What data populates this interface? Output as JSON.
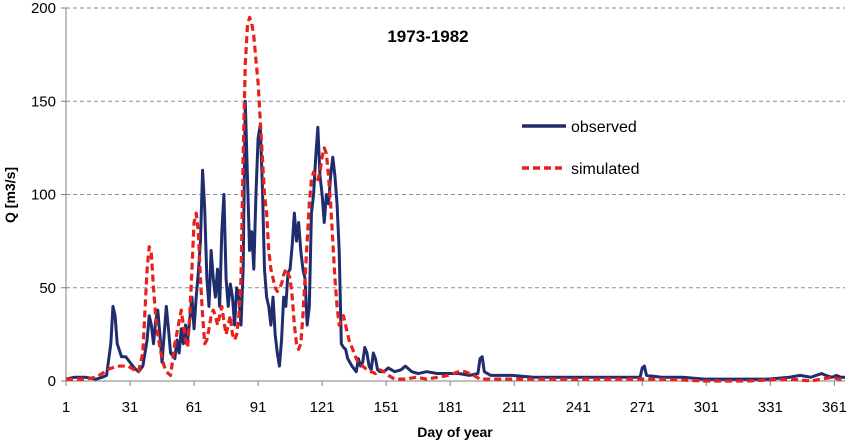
{
  "chart_data": {
    "type": "line",
    "title": "1973-1982",
    "xlabel": "Day of year",
    "ylabel": "Q [m3/s]",
    "xlim": [
      1,
      366
    ],
    "ylim": [
      0,
      200
    ],
    "xticks": [
      1,
      31,
      61,
      91,
      121,
      151,
      181,
      211,
      241,
      271,
      301,
      331,
      361
    ],
    "yticks": [
      0,
      50,
      100,
      150,
      200
    ],
    "grid": "horizontal dashed",
    "legend_position": "right of center",
    "colors": {
      "observed": "#1f2d6e",
      "simulated": "#e8211c"
    },
    "series": [
      {
        "name": "observed",
        "style": "solid",
        "points": [
          [
            1,
            1
          ],
          [
            5,
            2
          ],
          [
            10,
            2
          ],
          [
            15,
            1
          ],
          [
            18,
            2
          ],
          [
            20,
            3
          ],
          [
            22,
            20
          ],
          [
            23,
            40
          ],
          [
            24,
            35
          ],
          [
            25,
            20
          ],
          [
            27,
            13
          ],
          [
            29,
            13
          ],
          [
            31,
            10
          ],
          [
            33,
            7
          ],
          [
            35,
            5
          ],
          [
            37,
            8
          ],
          [
            39,
            22
          ],
          [
            40,
            35
          ],
          [
            41,
            30
          ],
          [
            42,
            20
          ],
          [
            43,
            32
          ],
          [
            44,
            38
          ],
          [
            45,
            25
          ],
          [
            46,
            10
          ],
          [
            47,
            25
          ],
          [
            48,
            40
          ],
          [
            49,
            28
          ],
          [
            50,
            15
          ],
          [
            52,
            12
          ],
          [
            53,
            22
          ],
          [
            54,
            15
          ],
          [
            55,
            28
          ],
          [
            56,
            20
          ],
          [
            57,
            30
          ],
          [
            58,
            22
          ],
          [
            59,
            33
          ],
          [
            60,
            45
          ],
          [
            61,
            28
          ],
          [
            62,
            45
          ],
          [
            63,
            58
          ],
          [
            64,
            75
          ],
          [
            65,
            113
          ],
          [
            66,
            92
          ],
          [
            67,
            55
          ],
          [
            68,
            40
          ],
          [
            69,
            70
          ],
          [
            70,
            55
          ],
          [
            71,
            45
          ],
          [
            72,
            60
          ],
          [
            73,
            40
          ],
          [
            74,
            80
          ],
          [
            75,
            100
          ],
          [
            76,
            55
          ],
          [
            77,
            40
          ],
          [
            78,
            52
          ],
          [
            79,
            45
          ],
          [
            80,
            30
          ],
          [
            81,
            50
          ],
          [
            82,
            45
          ],
          [
            83,
            30
          ],
          [
            84,
            60
          ],
          [
            85,
            150
          ],
          [
            86,
            110
          ],
          [
            87,
            70
          ],
          [
            88,
            80
          ],
          [
            89,
            60
          ],
          [
            90,
            100
          ],
          [
            91,
            130
          ],
          [
            92,
            137
          ],
          [
            93,
            105
          ],
          [
            94,
            60
          ],
          [
            95,
            45
          ],
          [
            96,
            40
          ],
          [
            97,
            30
          ],
          [
            98,
            45
          ],
          [
            99,
            25
          ],
          [
            100,
            15
          ],
          [
            101,
            8
          ],
          [
            102,
            22
          ],
          [
            103,
            45
          ],
          [
            104,
            40
          ],
          [
            105,
            58
          ],
          [
            106,
            60
          ],
          [
            107,
            73
          ],
          [
            108,
            90
          ],
          [
            109,
            75
          ],
          [
            110,
            85
          ],
          [
            111,
            70
          ],
          [
            112,
            60
          ],
          [
            113,
            55
          ],
          [
            114,
            30
          ],
          [
            115,
            40
          ],
          [
            116,
            90
          ],
          [
            117,
            100
          ],
          [
            118,
            120
          ],
          [
            119,
            136
          ],
          [
            120,
            110
          ],
          [
            121,
            100
          ],
          [
            122,
            85
          ],
          [
            123,
            100
          ],
          [
            124,
            95
          ],
          [
            125,
            110
          ],
          [
            126,
            120
          ],
          [
            127,
            110
          ],
          [
            128,
            95
          ],
          [
            129,
            70
          ],
          [
            130,
            20
          ],
          [
            131,
            18
          ],
          [
            132,
            17
          ],
          [
            133,
            12
          ],
          [
            134,
            10
          ],
          [
            135,
            8
          ],
          [
            137,
            5
          ],
          [
            138,
            12
          ],
          [
            139,
            8
          ],
          [
            140,
            10
          ],
          [
            141,
            18
          ],
          [
            142,
            15
          ],
          [
            143,
            8
          ],
          [
            144,
            6
          ],
          [
            145,
            15
          ],
          [
            146,
            12
          ],
          [
            147,
            6
          ],
          [
            148,
            5
          ],
          [
            150,
            5
          ],
          [
            152,
            7
          ],
          [
            155,
            5
          ],
          [
            158,
            6
          ],
          [
            160,
            8
          ],
          [
            163,
            5
          ],
          [
            166,
            4
          ],
          [
            170,
            5
          ],
          [
            175,
            4
          ],
          [
            180,
            4
          ],
          [
            185,
            4
          ],
          [
            190,
            3
          ],
          [
            194,
            4
          ],
          [
            195,
            12
          ],
          [
            196,
            13
          ],
          [
            197,
            5
          ],
          [
            200,
            3
          ],
          [
            210,
            3
          ],
          [
            220,
            2
          ],
          [
            230,
            2
          ],
          [
            240,
            2
          ],
          [
            250,
            2
          ],
          [
            260,
            2
          ],
          [
            270,
            2
          ],
          [
            271,
            7
          ],
          [
            272,
            8
          ],
          [
            273,
            3
          ],
          [
            280,
            2
          ],
          [
            290,
            2
          ],
          [
            300,
            1
          ],
          [
            310,
            1
          ],
          [
            320,
            1
          ],
          [
            330,
            1
          ],
          [
            340,
            2
          ],
          [
            345,
            3
          ],
          [
            350,
            2
          ],
          [
            355,
            4
          ],
          [
            357,
            3
          ],
          [
            360,
            2
          ],
          [
            362,
            3
          ],
          [
            364,
            2
          ],
          [
            366,
            2
          ]
        ]
      },
      {
        "name": "simulated",
        "style": "dashed",
        "points": [
          [
            1,
            1
          ],
          [
            5,
            1
          ],
          [
            10,
            1
          ],
          [
            15,
            2
          ],
          [
            18,
            4
          ],
          [
            20,
            6
          ],
          [
            25,
            8
          ],
          [
            30,
            8
          ],
          [
            33,
            6
          ],
          [
            35,
            5
          ],
          [
            37,
            15
          ],
          [
            39,
            60
          ],
          [
            40,
            72
          ],
          [
            41,
            68
          ],
          [
            42,
            50
          ],
          [
            43,
            35
          ],
          [
            44,
            25
          ],
          [
            45,
            18
          ],
          [
            46,
            12
          ],
          [
            47,
            8
          ],
          [
            48,
            5
          ],
          [
            50,
            3
          ],
          [
            52,
            20
          ],
          [
            54,
            32
          ],
          [
            55,
            38
          ],
          [
            56,
            30
          ],
          [
            57,
            22
          ],
          [
            58,
            18
          ],
          [
            59,
            35
          ],
          [
            60,
            60
          ],
          [
            61,
            85
          ],
          [
            62,
            90
          ],
          [
            63,
            80
          ],
          [
            64,
            55
          ],
          [
            65,
            35
          ],
          [
            66,
            20
          ],
          [
            67,
            22
          ],
          [
            68,
            28
          ],
          [
            69,
            35
          ],
          [
            70,
            38
          ],
          [
            71,
            35
          ],
          [
            72,
            30
          ],
          [
            73,
            35
          ],
          [
            74,
            40
          ],
          [
            75,
            32
          ],
          [
            76,
            25
          ],
          [
            77,
            30
          ],
          [
            78,
            35
          ],
          [
            79,
            25
          ],
          [
            80,
            22
          ],
          [
            81,
            25
          ],
          [
            82,
            35
          ],
          [
            83,
            55
          ],
          [
            84,
            120
          ],
          [
            85,
            170
          ],
          [
            86,
            190
          ],
          [
            87,
            195
          ],
          [
            88,
            192
          ],
          [
            89,
            185
          ],
          [
            90,
            172
          ],
          [
            91,
            160
          ],
          [
            92,
            140
          ],
          [
            93,
            120
          ],
          [
            94,
            100
          ],
          [
            95,
            90
          ],
          [
            96,
            70
          ],
          [
            97,
            60
          ],
          [
            98,
            55
          ],
          [
            99,
            50
          ],
          [
            100,
            48
          ],
          [
            101,
            50
          ],
          [
            102,
            52
          ],
          [
            103,
            57
          ],
          [
            104,
            60
          ],
          [
            105,
            58
          ],
          [
            106,
            55
          ],
          [
            107,
            45
          ],
          [
            108,
            30
          ],
          [
            109,
            20
          ],
          [
            110,
            17
          ],
          [
            111,
            20
          ],
          [
            112,
            35
          ],
          [
            113,
            55
          ],
          [
            114,
            75
          ],
          [
            115,
            95
          ],
          [
            116,
            108
          ],
          [
            117,
            112
          ],
          [
            118,
            110
          ],
          [
            119,
            108
          ],
          [
            120,
            112
          ],
          [
            121,
            120
          ],
          [
            122,
            125
          ],
          [
            123,
            122
          ],
          [
            124,
            110
          ],
          [
            125,
            95
          ],
          [
            126,
            75
          ],
          [
            127,
            55
          ],
          [
            128,
            40
          ],
          [
            129,
            30
          ],
          [
            130,
            32
          ],
          [
            131,
            35
          ],
          [
            132,
            30
          ],
          [
            133,
            25
          ],
          [
            134,
            20
          ],
          [
            135,
            18
          ],
          [
            136,
            15
          ],
          [
            137,
            12
          ],
          [
            138,
            10
          ],
          [
            140,
            8
          ],
          [
            142,
            6
          ],
          [
            144,
            5
          ],
          [
            146,
            4
          ],
          [
            148,
            6
          ],
          [
            150,
            5
          ],
          [
            152,
            3
          ],
          [
            155,
            1
          ],
          [
            160,
            1
          ],
          [
            165,
            2
          ],
          [
            170,
            1
          ],
          [
            175,
            2
          ],
          [
            180,
            3
          ],
          [
            185,
            5
          ],
          [
            188,
            5
          ],
          [
            192,
            3
          ],
          [
            195,
            1
          ],
          [
            200,
            1
          ],
          [
            220,
            1
          ],
          [
            240,
            1
          ],
          [
            260,
            1
          ],
          [
            280,
            1
          ],
          [
            300,
            0
          ],
          [
            320,
            0
          ],
          [
            340,
            1
          ],
          [
            350,
            0
          ],
          [
            355,
            1
          ],
          [
            360,
            2
          ],
          [
            363,
            1
          ],
          [
            366,
            1
          ]
        ]
      }
    ]
  }
}
